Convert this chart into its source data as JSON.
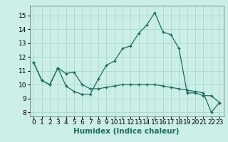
{
  "title": "",
  "xlabel": "Humidex (Indice chaleur)",
  "background_color": "#cceee8",
  "grid_color": "#aaddcc",
  "line_color": "#1a6b60",
  "xlim": [
    -0.5,
    23.5
  ],
  "ylim": [
    7.7,
    15.7
  ],
  "xticks": [
    0,
    1,
    2,
    3,
    4,
    5,
    6,
    7,
    8,
    9,
    10,
    11,
    12,
    13,
    14,
    15,
    16,
    17,
    18,
    19,
    20,
    21,
    22,
    23
  ],
  "yticks": [
    8,
    9,
    10,
    11,
    12,
    13,
    14,
    15
  ],
  "series1_x": [
    0,
    1,
    2,
    3,
    4,
    5,
    6,
    7,
    8,
    9,
    10,
    11,
    12,
    13,
    14,
    15,
    16,
    17,
    18,
    19,
    20,
    21,
    22,
    23
  ],
  "series1_y": [
    11.6,
    10.3,
    10.0,
    11.2,
    9.9,
    9.5,
    9.3,
    9.3,
    10.4,
    11.4,
    11.7,
    12.6,
    12.8,
    13.7,
    14.3,
    15.2,
    13.8,
    13.6,
    12.6,
    9.4,
    9.4,
    9.2,
    9.2,
    8.7
  ],
  "series2_x": [
    0,
    1,
    2,
    3,
    4,
    5,
    6,
    7,
    8,
    9,
    10,
    11,
    12,
    13,
    14,
    15,
    16,
    17,
    18,
    19,
    20,
    21,
    22,
    23
  ],
  "series2_y": [
    11.6,
    10.3,
    10.0,
    11.2,
    10.8,
    10.9,
    10.0,
    9.7,
    9.7,
    9.8,
    9.9,
    10.0,
    10.0,
    10.0,
    10.0,
    10.0,
    9.9,
    9.8,
    9.7,
    9.6,
    9.5,
    9.4,
    8.0,
    8.7
  ],
  "tick_fontsize": 6.5,
  "xlabel_fontsize": 7.5
}
